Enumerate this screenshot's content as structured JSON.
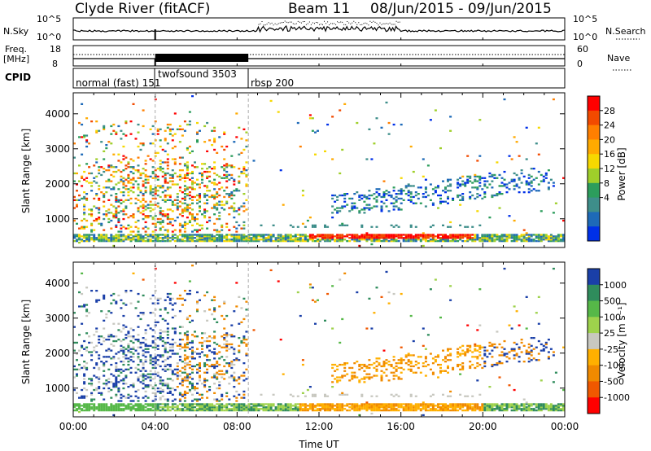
{
  "header": {
    "station_title": "Clyde River (fitACF)",
    "beam_title": "Beam 11",
    "date_range": "08/Jun/2015 - 09/Jun/2015"
  },
  "noise_panel": {
    "left_label": "N.Sky",
    "right_label": "N.Search",
    "left_ticks": [
      "10^5",
      "10^0"
    ],
    "right_ticks": [
      "10^5",
      "10^0"
    ]
  },
  "freq_panel": {
    "left_label_line1": "Freq.",
    "left_label_line2": "[MHz]",
    "right_label": "Nave",
    "left_ticks": [
      "18",
      "8"
    ],
    "right_ticks": [
      "60",
      "0"
    ]
  },
  "cpid_panel": {
    "label": "CPID",
    "segments": [
      {
        "name": "normal (fast) 151",
        "start_hour": 0.0
      },
      {
        "name": "twofsound 3503",
        "start_hour": 4.0
      },
      {
        "name": "rbsp 200",
        "start_hour": 8.55
      }
    ]
  },
  "chart_data": [
    {
      "type": "heatmap",
      "title": "",
      "quantity": "Power",
      "xlabel": "",
      "ylabel": "Slant Range [km]",
      "xlim_hours": [
        0,
        24
      ],
      "ylim": [
        180,
        4600
      ],
      "y_ticks": [
        1000,
        2000,
        3000,
        4000
      ],
      "colorbar": {
        "label": "Power [dB]",
        "ticks": [
          "28",
          "24",
          "20",
          "16",
          "12",
          "8",
          "4"
        ],
        "colors": [
          "#ff0000",
          "#f24a00",
          "#ff7f00",
          "#ffaa00",
          "#f6d800",
          "#9fcf2a",
          "#2c9d5c",
          "#3e8e8a",
          "#1e6ab8",
          "#0030e8"
        ]
      },
      "features": [
        {
          "desc": "E-region band",
          "range_km": [
            300,
            520
          ],
          "time_hours": [
            0,
            24
          ]
        },
        {
          "desc": "strong echo band",
          "range_km": [
            400,
            620
          ],
          "time_hours": [
            11.5,
            19.5
          ]
        },
        {
          "desc": "dense F-region patches",
          "range_km": [
            600,
            3800
          ],
          "time_hours": [
            0,
            8.5
          ]
        }
      ]
    },
    {
      "type": "heatmap",
      "title": "",
      "quantity": "Velocity",
      "xlabel": "Time UT",
      "ylabel": "Slant Range [km]",
      "xlim_hours": [
        0,
        24
      ],
      "ylim": [
        180,
        4600
      ],
      "x_ticks": [
        "00:00",
        "04:00",
        "08:00",
        "12:00",
        "16:00",
        "20:00",
        "00:00"
      ],
      "y_ticks": [
        1000,
        2000,
        3000,
        4000
      ],
      "colorbar": {
        "label": "Velocity [m s⁻¹]",
        "ticks": [
          "1000",
          "500",
          "100",
          "25",
          "-25",
          "-100",
          "-500",
          "-1000"
        ],
        "colors": [
          "#1a3fa8",
          "#2f8c5c",
          "#56b848",
          "#9ed24c",
          "#c8c8c0",
          "#ffb000",
          "#f08a00",
          "#f05800",
          "#ff0000"
        ]
      }
    }
  ]
}
